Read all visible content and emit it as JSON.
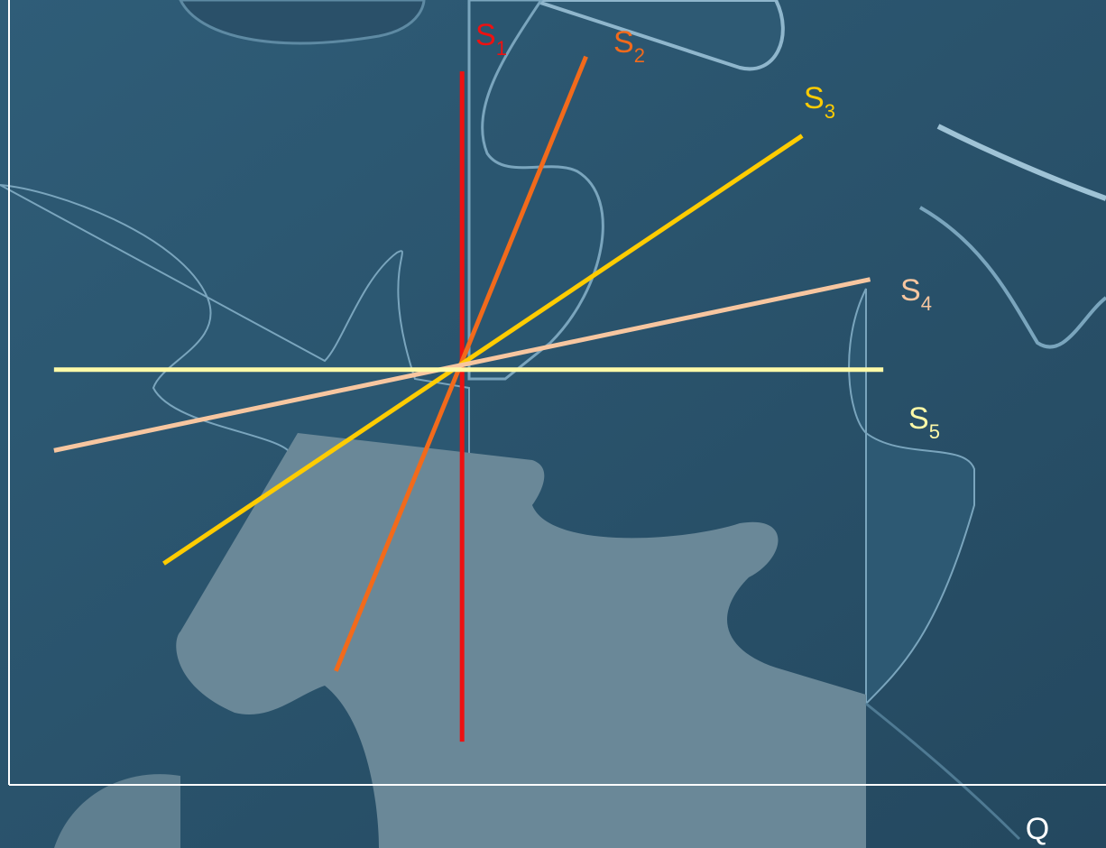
{
  "chart_data": {
    "type": "line",
    "title": "",
    "xlabel": "Q",
    "ylabel": "",
    "grid": false,
    "legend": "none",
    "xlim": [
      0,
      10
    ],
    "ylim": [
      0,
      10
    ],
    "series": [
      {
        "name": "S",
        "sub": "1",
        "color": "#ee1111",
        "points": [
          [
            4.13,
            0.55
          ],
          [
            4.13,
            9.09
          ]
        ]
      },
      {
        "name": "S",
        "sub": "2",
        "color": "#f26a1b",
        "points": [
          [
            2.98,
            1.45
          ],
          [
            5.26,
            9.28
          ]
        ]
      },
      {
        "name": "S",
        "sub": "3",
        "color": "#ffcc00",
        "points": [
          [
            1.41,
            2.82
          ],
          [
            7.23,
            8.27
          ]
        ]
      },
      {
        "name": "S",
        "sub": "4",
        "color": "#f7c6a0",
        "points": [
          [
            0.41,
            4.26
          ],
          [
            7.85,
            6.44
          ]
        ]
      },
      {
        "name": "S",
        "sub": "5",
        "color": "#fffaa8",
        "points": [
          [
            0.41,
            5.29
          ],
          [
            7.97,
            5.29
          ]
        ]
      }
    ]
  }
}
